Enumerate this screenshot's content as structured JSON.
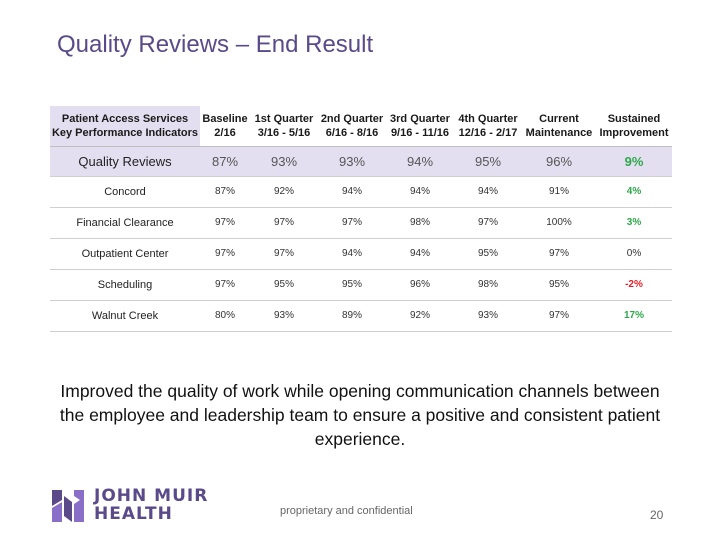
{
  "slide": {
    "title": "Quality Reviews – End Result",
    "body": "Improved the quality of work while opening communication channels between the employee and leadership team to ensure a positive and consistent patient experience.",
    "footer": "proprietary and confidential",
    "page_number": "20"
  },
  "logo": {
    "line1": "JOHN MUIR",
    "line2": "HEALTH",
    "icon": "john-muir-mark-icon"
  },
  "table": {
    "headers": [
      [
        "Patient Access Services",
        "Key Performance Indicators"
      ],
      [
        "Baseline",
        "2/16"
      ],
      [
        "1st Quarter",
        "3/16 - 5/16"
      ],
      [
        "2nd Quarter",
        "6/16 - 8/16"
      ],
      [
        "3rd Quarter",
        "9/16 - 11/16"
      ],
      [
        "4th Quarter",
        "12/16 - 2/17"
      ],
      [
        "Current",
        "Maintenance"
      ],
      [
        "Sustained",
        "Improvement"
      ]
    ],
    "rows": [
      {
        "name": "Quality Reviews",
        "cells": [
          "87%",
          "93%",
          "93%",
          "94%",
          "95%",
          "96%",
          "9%"
        ]
      },
      {
        "name": "Concord",
        "cells": [
          "87%",
          "92%",
          "94%",
          "94%",
          "94%",
          "91%",
          "4%"
        ]
      },
      {
        "name": "Financial Clearance",
        "cells": [
          "97%",
          "97%",
          "97%",
          "98%",
          "97%",
          "100%",
          "3%"
        ]
      },
      {
        "name": "Outpatient Center",
        "cells": [
          "97%",
          "97%",
          "94%",
          "94%",
          "95%",
          "97%",
          "0%"
        ]
      },
      {
        "name": "Scheduling",
        "cells": [
          "97%",
          "95%",
          "95%",
          "96%",
          "98%",
          "95%",
          "-2%"
        ]
      },
      {
        "name": "Walnut Creek",
        "cells": [
          "80%",
          "93%",
          "89%",
          "92%",
          "93%",
          "97%",
          "17%"
        ]
      }
    ]
  },
  "colors": {
    "title": "#5a4a8a",
    "header_band": "#e4dff0",
    "positive": "#2ea84a",
    "negative": "#e0202a",
    "logo_purple": "#5a4a8a",
    "logo_violet": "#8a6fc8"
  }
}
